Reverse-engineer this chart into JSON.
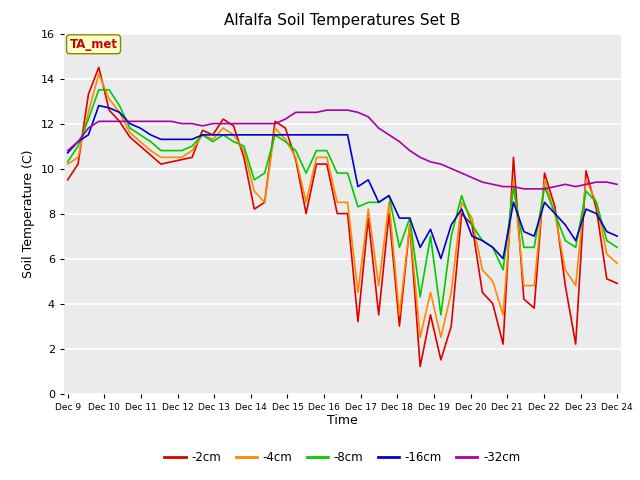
{
  "title": "Alfalfa Soil Temperatures Set B",
  "xlabel": "Time",
  "ylabel": "Soil Temperature (C)",
  "ylim": [
    0,
    16
  ],
  "background_color": "#ebebeb",
  "plot_bg_color": "#ebebeb",
  "annotation_text": "TA_met",
  "annotation_color": "#cc0000",
  "annotation_bg": "#ffffcc",
  "series_colors": {
    "-2cm": "#dd0000",
    "-4cm": "#ff8800",
    "-8cm": "#00cc00",
    "-16cm": "#0000cc",
    "-32cm": "#aa00aa"
  },
  "xtick_labels": [
    "Dec 9",
    "Dec 10",
    "Dec 11",
    "Dec 12",
    "Dec 13",
    "Dec 14",
    "Dec 15",
    "Dec 16",
    "Dec 17",
    "Dec 18",
    "Dec 19",
    "Dec 20",
    "Dec 21",
    "Dec 22",
    "Dec 23",
    "Dec 24"
  ],
  "series": {
    "-2cm": [
      9.5,
      10.2,
      13.3,
      14.5,
      12.6,
      12.1,
      11.4,
      11.0,
      10.6,
      10.2,
      10.3,
      10.4,
      10.5,
      11.7,
      11.5,
      12.2,
      11.9,
      10.5,
      8.2,
      8.5,
      12.1,
      11.8,
      10.4,
      8.0,
      10.2,
      10.2,
      8.0,
      8.0,
      3.2,
      7.8,
      3.5,
      8.0,
      3.0,
      7.5,
      1.2,
      3.5,
      1.5,
      3.0,
      8.0,
      7.5,
      4.5,
      4.0,
      2.2,
      10.5,
      4.2,
      3.8,
      9.8,
      8.3,
      4.8,
      2.2,
      9.9,
      8.2,
      5.1,
      4.9
    ],
    "-4cm": [
      10.2,
      10.5,
      12.5,
      14.2,
      13.1,
      12.5,
      11.6,
      11.2,
      10.8,
      10.5,
      10.5,
      10.5,
      10.8,
      11.5,
      11.3,
      11.8,
      11.5,
      10.8,
      9.0,
      8.5,
      11.8,
      11.3,
      10.5,
      8.5,
      10.5,
      10.5,
      8.5,
      8.5,
      4.5,
      8.2,
      4.8,
      8.5,
      3.5,
      7.5,
      2.5,
      4.5,
      2.5,
      4.5,
      8.5,
      7.8,
      5.5,
      5.0,
      3.5,
      9.5,
      4.8,
      4.8,
      9.5,
      8.0,
      5.5,
      4.8,
      9.5,
      8.5,
      6.2,
      5.8
    ],
    "-8cm": [
      10.3,
      11.0,
      12.2,
      13.5,
      13.5,
      12.8,
      11.8,
      11.5,
      11.2,
      10.8,
      10.8,
      10.8,
      11.0,
      11.5,
      11.2,
      11.5,
      11.2,
      11.0,
      9.5,
      9.8,
      11.5,
      11.2,
      10.8,
      9.8,
      10.8,
      10.8,
      9.8,
      9.8,
      8.3,
      8.5,
      8.5,
      8.8,
      6.5,
      7.8,
      4.3,
      7.0,
      3.5,
      7.0,
      8.8,
      7.5,
      6.8,
      6.5,
      5.5,
      9.2,
      6.5,
      6.5,
      9.2,
      8.0,
      6.8,
      6.5,
      9.0,
      8.5,
      6.8,
      6.5
    ],
    "-16cm": [
      10.7,
      11.2,
      11.5,
      12.8,
      12.7,
      12.5,
      12.0,
      11.8,
      11.5,
      11.3,
      11.3,
      11.3,
      11.3,
      11.5,
      11.5,
      11.5,
      11.5,
      11.5,
      11.5,
      11.5,
      11.5,
      11.5,
      11.5,
      11.5,
      11.5,
      11.5,
      11.5,
      11.5,
      9.2,
      9.5,
      8.5,
      8.8,
      7.8,
      7.8,
      6.5,
      7.3,
      6.0,
      7.5,
      8.2,
      7.0,
      6.8,
      6.5,
      6.0,
      8.5,
      7.2,
      7.0,
      8.5,
      8.0,
      7.5,
      6.8,
      8.2,
      8.0,
      7.2,
      7.0
    ],
    "-32cm": [
      10.8,
      11.2,
      11.8,
      12.1,
      12.1,
      12.1,
      12.1,
      12.1,
      12.1,
      12.1,
      12.1,
      12.0,
      12.0,
      11.9,
      12.0,
      12.0,
      12.0,
      12.0,
      12.0,
      12.0,
      12.0,
      12.2,
      12.5,
      12.5,
      12.5,
      12.6,
      12.6,
      12.6,
      12.5,
      12.3,
      11.8,
      11.5,
      11.2,
      10.8,
      10.5,
      10.3,
      10.2,
      10.0,
      9.8,
      9.6,
      9.4,
      9.3,
      9.2,
      9.2,
      9.1,
      9.1,
      9.1,
      9.2,
      9.3,
      9.2,
      9.3,
      9.4,
      9.4,
      9.3
    ]
  }
}
